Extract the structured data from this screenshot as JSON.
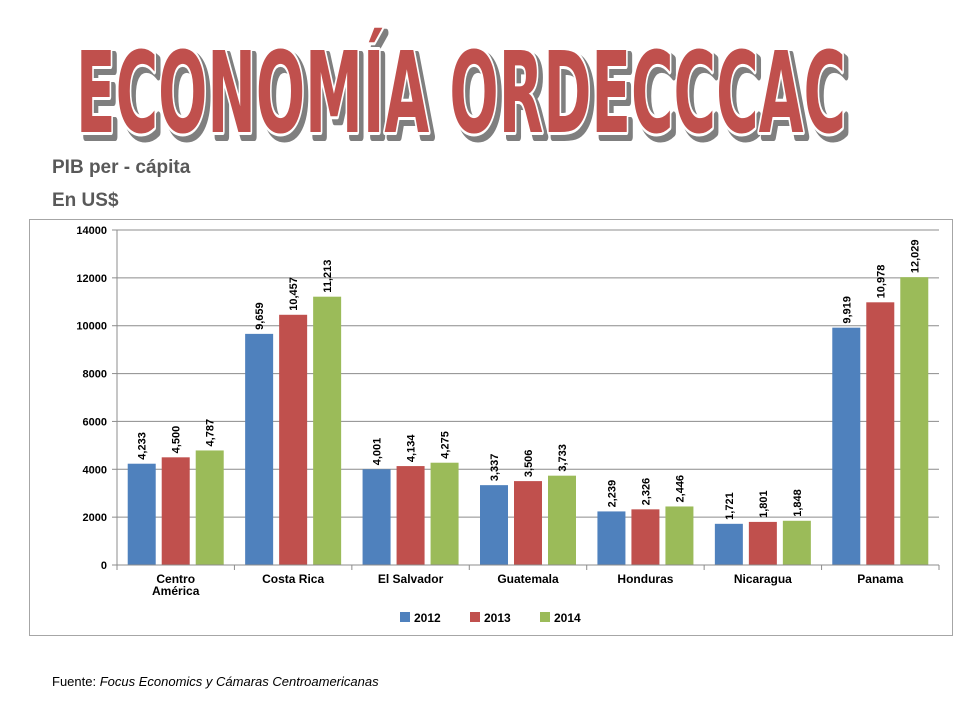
{
  "page": {
    "title": "ECONOMÍA ORDECCCAC",
    "subtitle_line1": "PIB per - cápita",
    "subtitle_line2": "En US$",
    "source_prefix": "Fuente: ",
    "source_text": "Focus Economics y Cámaras Centroamericanas"
  },
  "colors": {
    "title_fill": "#c0504d",
    "title_outline": "#ffffff",
    "title_shadow": "#7f7f7f"
  },
  "chart_data": {
    "type": "bar",
    "categories": [
      [
        "Centro",
        "América"
      ],
      [
        "Costa Rica"
      ],
      [
        "El Salvador"
      ],
      [
        "Guatemala"
      ],
      [
        "Honduras"
      ],
      [
        "Nicaragua"
      ],
      [
        "Panama"
      ]
    ],
    "series": [
      {
        "name": "2012",
        "color": "#4f81bd",
        "values": [
          4233,
          9659,
          4001,
          3337,
          2239,
          1721,
          9919
        ],
        "labels": [
          "4,233",
          "9,659",
          "4,001",
          "3,337",
          "2,239",
          "1,721",
          "9,919"
        ]
      },
      {
        "name": "2013",
        "color": "#c0504d",
        "values": [
          4500,
          10457,
          4134,
          3506,
          2326,
          1801,
          10978
        ],
        "labels": [
          "4,500",
          "10,457",
          "4,134",
          "3,506",
          "2,326",
          "1,801",
          "10,978"
        ]
      },
      {
        "name": "2014",
        "color": "#9bbb59",
        "values": [
          4787,
          11213,
          4275,
          3733,
          2446,
          1848,
          12029
        ],
        "labels": [
          "4,787",
          "11,213",
          "4,275",
          "3,733",
          "2,446",
          "1,848",
          "12,029"
        ]
      }
    ],
    "yticks": [
      "0",
      "2000",
      "4000",
      "6000",
      "8000",
      "10000",
      "12000",
      "14000"
    ],
    "ylim": [
      0,
      14000
    ],
    "grid": true,
    "legend": "bottom",
    "xlabel": "",
    "ylabel": ""
  }
}
